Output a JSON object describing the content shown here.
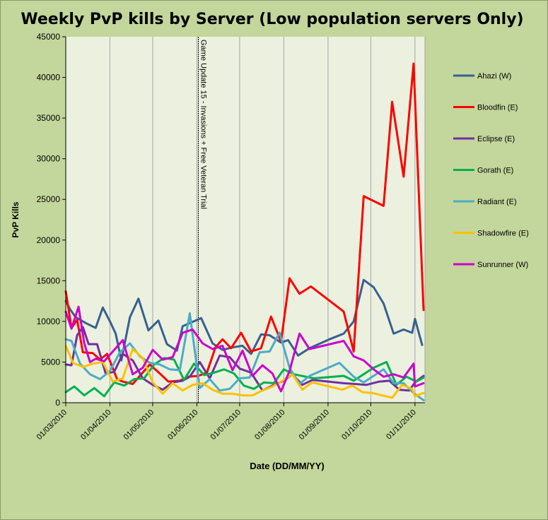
{
  "chart_data": {
    "type": "line",
    "title": "Weekly PvP kills by Server (Low population servers Only)",
    "xlabel": "Date (DD/MM/YY)",
    "ylabel": "PvP Kills",
    "ylim": [
      0,
      45000
    ],
    "yticks": [
      0,
      5000,
      10000,
      15000,
      20000,
      25000,
      30000,
      35000,
      40000,
      45000
    ],
    "xlim": [
      "2010-03-01",
      "2010-11-08"
    ],
    "xticks": [
      {
        "date": "2010-03-01",
        "label": "01/03/2010"
      },
      {
        "date": "2010-04-01",
        "label": "01/04/2010"
      },
      {
        "date": "2010-05-01",
        "label": "01/05/2010"
      },
      {
        "date": "2010-06-01",
        "label": "01/06/2010"
      },
      {
        "date": "2010-07-01",
        "label": "01/07/2010"
      },
      {
        "date": "2010-08-01",
        "label": "01/08/2010"
      },
      {
        "date": "2010-09-01",
        "label": "01/09/2010"
      },
      {
        "date": "2010-10-01",
        "label": "01/10/2010"
      },
      {
        "date": "2010-11-01",
        "label": "01/11/2010"
      }
    ],
    "grid": "vertical",
    "legend_position": "right",
    "annotation": {
      "date": "2010-06-02",
      "text": "Game Update 15 - Invasions + Free Veteran Trial"
    },
    "series": [
      {
        "name": "Ahazi (W)",
        "color": "#376092",
        "points": [
          [
            "2010-03-01",
            12500
          ],
          [
            "2010-03-04",
            11500
          ],
          [
            "2010-03-08",
            10500
          ],
          [
            "2010-03-11",
            10200
          ],
          [
            "2010-03-15",
            9800
          ],
          [
            "2010-03-22",
            9200
          ],
          [
            "2010-03-27",
            11700
          ],
          [
            "2010-04-01",
            10000
          ],
          [
            "2010-04-05",
            8500
          ],
          [
            "2010-04-09",
            5200
          ],
          [
            "2010-04-15",
            10500
          ],
          [
            "2010-04-21",
            12800
          ],
          [
            "2010-04-28",
            8900
          ],
          [
            "2010-05-05",
            10100
          ],
          [
            "2010-05-11",
            7200
          ],
          [
            "2010-05-18",
            6400
          ],
          [
            "2010-05-22",
            9400
          ],
          [
            "2010-06-04",
            10400
          ],
          [
            "2010-06-12",
            7300
          ],
          [
            "2010-06-19",
            6500
          ],
          [
            "2010-06-26",
            6800
          ],
          [
            "2010-07-03",
            7000
          ],
          [
            "2010-07-09",
            6000
          ],
          [
            "2010-07-16",
            8400
          ],
          [
            "2010-07-22",
            8300
          ],
          [
            "2010-07-30",
            7400
          ],
          [
            "2010-08-04",
            7700
          ],
          [
            "2010-08-11",
            5800
          ],
          [
            "2010-08-19",
            6700
          ],
          [
            "2010-09-02",
            7800
          ],
          [
            "2010-09-12",
            8500
          ],
          [
            "2010-09-19",
            10000
          ],
          [
            "2010-09-26",
            15100
          ],
          [
            "2010-10-03",
            14200
          ],
          [
            "2010-10-10",
            12200
          ],
          [
            "2010-10-17",
            8500
          ],
          [
            "2010-10-24",
            9000
          ],
          [
            "2010-10-30",
            8600
          ],
          [
            "2010-11-01",
            10300
          ],
          [
            "2010-11-06",
            7100
          ]
        ]
      },
      {
        "name": "Bloodfin (E)",
        "color": "#ff0000",
        "points": [
          [
            "2010-03-01",
            13700
          ],
          [
            "2010-03-05",
            9200
          ],
          [
            "2010-03-09",
            10200
          ],
          [
            "2010-03-13",
            6200
          ],
          [
            "2010-03-20",
            6100
          ],
          [
            "2010-03-25",
            5300
          ],
          [
            "2010-03-30",
            6000
          ],
          [
            "2010-04-06",
            2900
          ],
          [
            "2010-04-10",
            2600
          ],
          [
            "2010-04-17",
            2300
          ],
          [
            "2010-04-22",
            3300
          ],
          [
            "2010-04-29",
            4700
          ],
          [
            "2010-05-06",
            3600
          ],
          [
            "2010-05-12",
            2600
          ],
          [
            "2010-05-20",
            2700
          ],
          [
            "2010-05-26",
            3200
          ],
          [
            "2010-06-02",
            3300
          ],
          [
            "2010-06-08",
            3700
          ],
          [
            "2010-06-14",
            6800
          ],
          [
            "2010-06-19",
            7800
          ],
          [
            "2010-06-25",
            6700
          ],
          [
            "2010-07-02",
            8600
          ],
          [
            "2010-07-09",
            6300
          ],
          [
            "2010-07-16",
            6700
          ],
          [
            "2010-07-23",
            10600
          ],
          [
            "2010-07-30",
            7500
          ],
          [
            "2010-08-05",
            15300
          ],
          [
            "2010-08-12",
            13400
          ],
          [
            "2010-08-20",
            14300
          ],
          [
            "2010-09-12",
            11200
          ],
          [
            "2010-09-19",
            6300
          ],
          [
            "2010-09-26",
            25400
          ],
          [
            "2010-10-10",
            24200
          ],
          [
            "2010-10-16",
            37000
          ],
          [
            "2010-10-24",
            27800
          ],
          [
            "2010-10-31",
            41700
          ],
          [
            "2010-11-07",
            11400
          ]
        ]
      },
      {
        "name": "Eclipse (E)",
        "color": "#7030a0",
        "points": [
          [
            "2010-03-01",
            4700
          ],
          [
            "2010-03-05",
            4600
          ],
          [
            "2010-03-09",
            8300
          ],
          [
            "2010-03-13",
            9300
          ],
          [
            "2010-03-17",
            7200
          ],
          [
            "2010-03-23",
            7200
          ],
          [
            "2010-03-29",
            3600
          ],
          [
            "2010-04-04",
            3800
          ],
          [
            "2010-04-10",
            6000
          ],
          [
            "2010-04-17",
            5200
          ],
          [
            "2010-04-24",
            3000
          ],
          [
            "2010-05-01",
            2200
          ],
          [
            "2010-05-08",
            1600
          ],
          [
            "2010-05-15",
            2500
          ],
          [
            "2010-05-22",
            2700
          ],
          [
            "2010-05-27",
            3200
          ],
          [
            "2010-06-03",
            5000
          ],
          [
            "2010-06-10",
            3000
          ],
          [
            "2010-06-17",
            5800
          ],
          [
            "2010-06-24",
            5600
          ],
          [
            "2010-07-01",
            4200
          ],
          [
            "2010-07-09",
            3700
          ],
          [
            "2010-07-17",
            1500
          ],
          [
            "2010-07-24",
            2100
          ],
          [
            "2010-08-01",
            2700
          ],
          [
            "2010-08-07",
            3500
          ],
          [
            "2010-08-14",
            2200
          ],
          [
            "2010-08-21",
            2800
          ],
          [
            "2010-09-12",
            2400
          ],
          [
            "2010-09-28",
            2200
          ],
          [
            "2010-10-07",
            2600
          ],
          [
            "2010-10-14",
            2700
          ],
          [
            "2010-10-21",
            1600
          ],
          [
            "2010-10-28",
            1500
          ],
          [
            "2010-11-01",
            2500
          ],
          [
            "2010-11-07",
            3300
          ]
        ]
      },
      {
        "name": "Gorath (E)",
        "color": "#00b050",
        "points": [
          [
            "2010-03-01",
            1300
          ],
          [
            "2010-03-07",
            2000
          ],
          [
            "2010-03-14",
            900
          ],
          [
            "2010-03-21",
            1800
          ],
          [
            "2010-03-28",
            800
          ],
          [
            "2010-04-04",
            2500
          ],
          [
            "2010-04-11",
            2100
          ],
          [
            "2010-04-18",
            2900
          ],
          [
            "2010-04-25",
            3000
          ],
          [
            "2010-05-02",
            4700
          ],
          [
            "2010-05-09",
            5500
          ],
          [
            "2010-05-16",
            5300
          ],
          [
            "2010-05-23",
            2800
          ],
          [
            "2010-05-30",
            4800
          ],
          [
            "2010-06-06",
            3400
          ],
          [
            "2010-06-13",
            3700
          ],
          [
            "2010-06-20",
            4100
          ],
          [
            "2010-06-27",
            3600
          ],
          [
            "2010-07-04",
            2100
          ],
          [
            "2010-07-11",
            1700
          ],
          [
            "2010-07-18",
            2500
          ],
          [
            "2010-07-25",
            2400
          ],
          [
            "2010-08-01",
            4100
          ],
          [
            "2010-08-08",
            3500
          ],
          [
            "2010-08-22",
            3000
          ],
          [
            "2010-09-12",
            3300
          ],
          [
            "2010-09-19",
            2700
          ],
          [
            "2010-10-03",
            4300
          ],
          [
            "2010-10-12",
            5000
          ],
          [
            "2010-10-19",
            2200
          ],
          [
            "2010-10-26",
            3200
          ],
          [
            "2010-11-02",
            2600
          ],
          [
            "2010-11-07",
            3100
          ]
        ]
      },
      {
        "name": "Radiant (E)",
        "color": "#4bacc6",
        "points": [
          [
            "2010-03-01",
            7800
          ],
          [
            "2010-03-05",
            7600
          ],
          [
            "2010-03-11",
            4800
          ],
          [
            "2010-03-18",
            3500
          ],
          [
            "2010-03-25",
            2900
          ],
          [
            "2010-04-01",
            3900
          ],
          [
            "2010-04-08",
            6200
          ],
          [
            "2010-04-15",
            7300
          ],
          [
            "2010-04-22",
            5700
          ],
          [
            "2010-04-29",
            4900
          ],
          [
            "2010-05-06",
            4700
          ],
          [
            "2010-05-13",
            4100
          ],
          [
            "2010-05-20",
            4000
          ],
          [
            "2010-05-27",
            11000
          ],
          [
            "2010-06-03",
            1800
          ],
          [
            "2010-06-10",
            2900
          ],
          [
            "2010-06-17",
            1500
          ],
          [
            "2010-06-24",
            1700
          ],
          [
            "2010-07-01",
            3000
          ],
          [
            "2010-07-08",
            3100
          ],
          [
            "2010-07-15",
            6200
          ],
          [
            "2010-07-22",
            6300
          ],
          [
            "2010-07-29",
            8600
          ],
          [
            "2010-08-05",
            4300
          ],
          [
            "2010-08-12",
            2300
          ],
          [
            "2010-08-19",
            3300
          ],
          [
            "2010-09-09",
            4900
          ],
          [
            "2010-09-19",
            3200
          ],
          [
            "2010-09-26",
            2500
          ],
          [
            "2010-10-03",
            3300
          ],
          [
            "2010-10-10",
            4100
          ],
          [
            "2010-10-17",
            2400
          ],
          [
            "2010-10-24",
            2400
          ],
          [
            "2010-10-31",
            1200
          ],
          [
            "2010-11-07",
            300
          ]
        ]
      },
      {
        "name": "Shadowfire (E)",
        "color": "#ffc000",
        "points": [
          [
            "2010-03-01",
            7000
          ],
          [
            "2010-03-06",
            4900
          ],
          [
            "2010-03-13",
            4400
          ],
          [
            "2010-03-20",
            4800
          ],
          [
            "2010-03-27",
            5000
          ],
          [
            "2010-04-03",
            2600
          ],
          [
            "2010-04-10",
            3000
          ],
          [
            "2010-04-17",
            6600
          ],
          [
            "2010-04-24",
            5500
          ],
          [
            "2010-05-01",
            2500
          ],
          [
            "2010-05-08",
            1100
          ],
          [
            "2010-05-15",
            2400
          ],
          [
            "2010-05-22",
            1500
          ],
          [
            "2010-05-29",
            2200
          ],
          [
            "2010-06-05",
            2400
          ],
          [
            "2010-06-12",
            1600
          ],
          [
            "2010-06-19",
            1100
          ],
          [
            "2010-06-26",
            1100
          ],
          [
            "2010-07-03",
            900
          ],
          [
            "2010-07-10",
            900
          ],
          [
            "2010-07-17",
            1500
          ],
          [
            "2010-07-24",
            2000
          ],
          [
            "2010-07-31",
            2700
          ],
          [
            "2010-08-07",
            3500
          ],
          [
            "2010-08-14",
            1600
          ],
          [
            "2010-08-21",
            2500
          ],
          [
            "2010-09-11",
            1600
          ],
          [
            "2010-09-18",
            2100
          ],
          [
            "2010-09-25",
            1300
          ],
          [
            "2010-10-02",
            1200
          ],
          [
            "2010-10-09",
            900
          ],
          [
            "2010-10-16",
            600
          ],
          [
            "2010-10-23",
            2200
          ],
          [
            "2010-10-30",
            1700
          ],
          [
            "2010-11-01",
            800
          ],
          [
            "2010-11-07",
            1200
          ]
        ]
      },
      {
        "name": "Sunrunner (W)",
        "color": "#cc00cc",
        "points": [
          [
            "2010-03-01",
            11200
          ],
          [
            "2010-03-05",
            9100
          ],
          [
            "2010-03-10",
            11800
          ],
          [
            "2010-03-14",
            7300
          ],
          [
            "2010-03-18",
            5000
          ],
          [
            "2010-03-22",
            5400
          ],
          [
            "2010-03-28",
            5100
          ],
          [
            "2010-04-04",
            6500
          ],
          [
            "2010-04-10",
            7700
          ],
          [
            "2010-04-17",
            3500
          ],
          [
            "2010-04-24",
            4300
          ],
          [
            "2010-05-01",
            6500
          ],
          [
            "2010-05-08",
            5300
          ],
          [
            "2010-05-15",
            5600
          ],
          [
            "2010-05-22",
            8600
          ],
          [
            "2010-05-29",
            9000
          ],
          [
            "2010-06-05",
            7300
          ],
          [
            "2010-06-12",
            6600
          ],
          [
            "2010-06-19",
            7000
          ],
          [
            "2010-06-26",
            4000
          ],
          [
            "2010-07-03",
            6400
          ],
          [
            "2010-07-10",
            3300
          ],
          [
            "2010-07-17",
            4600
          ],
          [
            "2010-07-24",
            3600
          ],
          [
            "2010-07-30",
            1400
          ],
          [
            "2010-08-05",
            3900
          ],
          [
            "2010-08-12",
            8500
          ],
          [
            "2010-08-19",
            6600
          ],
          [
            "2010-09-12",
            7600
          ],
          [
            "2010-09-19",
            5700
          ],
          [
            "2010-09-26",
            5200
          ],
          [
            "2010-10-03",
            4100
          ],
          [
            "2010-10-10",
            3200
          ],
          [
            "2010-10-17",
            3500
          ],
          [
            "2010-10-24",
            3100
          ],
          [
            "2010-10-31",
            4800
          ],
          [
            "2010-11-01",
            2000
          ],
          [
            "2010-11-07",
            2400
          ]
        ]
      }
    ]
  }
}
